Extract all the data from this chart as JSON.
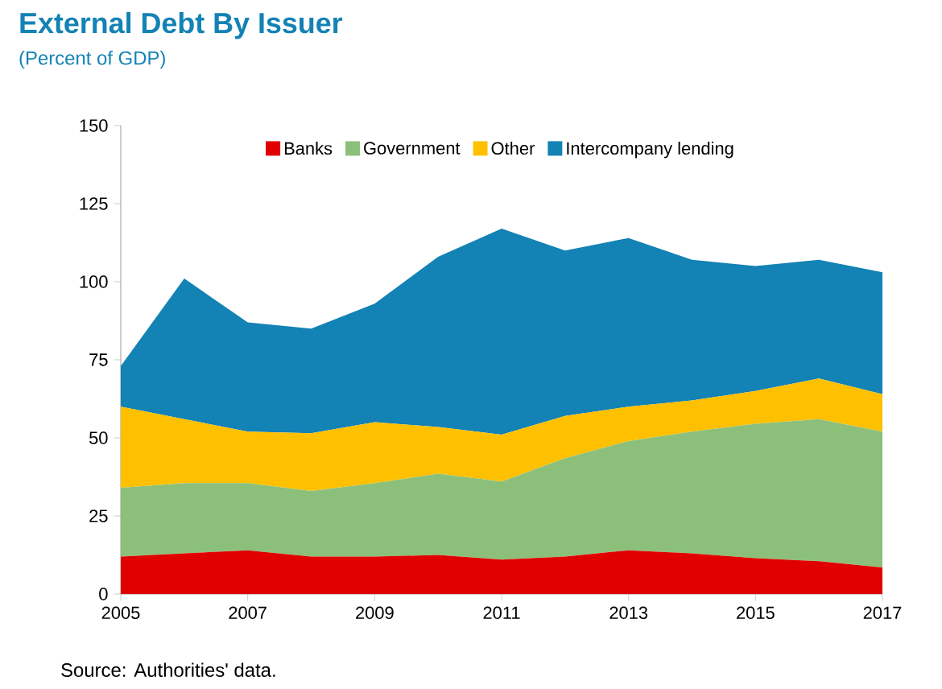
{
  "chart_data": {
    "type": "area",
    "stacked": true,
    "title": "External Debt By Issuer",
    "subtitle": "(Percent of GDP)",
    "x": [
      2005,
      2006,
      2007,
      2008,
      2009,
      2010,
      2011,
      2012,
      2013,
      2014,
      2015,
      2016,
      2017
    ],
    "series": [
      {
        "name": "Banks",
        "color": "#e00000",
        "values": [
          12,
          13,
          14,
          12,
          12,
          12.5,
          11,
          12,
          14,
          13,
          11.5,
          10.5,
          8.5
        ]
      },
      {
        "name": "Government",
        "color": "#8cc07a",
        "values": [
          22,
          22.5,
          21.5,
          21,
          23.5,
          26,
          25,
          31.5,
          35,
          39,
          43,
          45.5,
          43.5
        ]
      },
      {
        "name": "Other",
        "color": "#ffc000",
        "values": [
          26,
          20.5,
          16.5,
          18.5,
          19.5,
          15,
          15,
          13.5,
          11,
          10,
          10.5,
          13,
          12
        ]
      },
      {
        "name": "Intercompany lending",
        "color": "#1382b5",
        "values": [
          13,
          45,
          35,
          33.5,
          38,
          54.5,
          66,
          53,
          54,
          45,
          40,
          38,
          39
        ]
      }
    ],
    "xlim": [
      2005,
      2017
    ],
    "xticks": [
      2005,
      2007,
      2009,
      2011,
      2013,
      2015,
      2017
    ],
    "ylim": [
      0,
      150
    ],
    "yticks": [
      0,
      25,
      50,
      75,
      100,
      125,
      150
    ],
    "legend": "top",
    "annotations": [
      "Source: Authorities' data."
    ]
  }
}
